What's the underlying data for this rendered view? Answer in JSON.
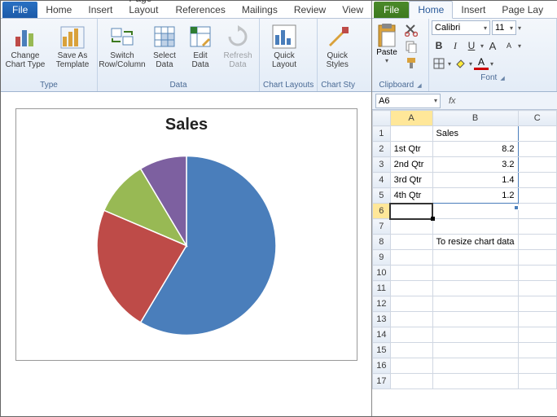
{
  "left": {
    "tabs": {
      "file": "File",
      "items": [
        "Home",
        "Insert",
        "Page Layout",
        "References",
        "Mailings",
        "Review",
        "View"
      ]
    },
    "ribbon": {
      "type_group": {
        "label": "Type",
        "change": "Change\nChart Type",
        "save": "Save As\nTemplate"
      },
      "data_group": {
        "label": "Data",
        "switch": "Switch\nRow/Column",
        "select": "Select\nData",
        "edit": "Edit\nData",
        "refresh": "Refresh\nData"
      },
      "layouts_group": {
        "label": "Chart Layouts",
        "quick": "Quick\nLayout"
      },
      "styles_group": {
        "label": "Chart Sty",
        "quick": "Quick\nStyles"
      }
    },
    "chart": {
      "title": "Sales",
      "type": "pie",
      "radius": 110,
      "series": [
        {
          "label": "1st Qtr",
          "value": 8.2,
          "color": "#4a7ebb"
        },
        {
          "label": "2nd Qtr",
          "value": 3.2,
          "color": "#be4b48"
        },
        {
          "label": "3rd Qtr",
          "value": 1.4,
          "color": "#98b954"
        },
        {
          "label": "4th Qtr",
          "value": 1.2,
          "color": "#7d60a0"
        }
      ],
      "border_color": "#ffffff"
    }
  },
  "right": {
    "tabs": {
      "file": "File",
      "items": [
        "Home",
        "Insert",
        "Page Lay"
      ]
    },
    "clipboard": {
      "label": "Clipboard",
      "paste": "Paste"
    },
    "font": {
      "label": "Font",
      "name": "Calibri",
      "size": "11",
      "bold": "B",
      "italic": "I",
      "underline": "U"
    },
    "namebox": "A6",
    "columns": [
      "A",
      "B",
      "C"
    ],
    "rows": 17,
    "cells": {
      "B1": "Sales",
      "A2": "1st Qtr",
      "B2": "8.2",
      "A3": "2nd Qtr",
      "B3": "3.2",
      "A4": "3rd Qtr",
      "B4": "1.4",
      "A5": "4th Qtr",
      "B5": "1.2",
      "B8": "To resize chart data"
    },
    "active_cell": "A6",
    "data_range_end": "B5"
  }
}
